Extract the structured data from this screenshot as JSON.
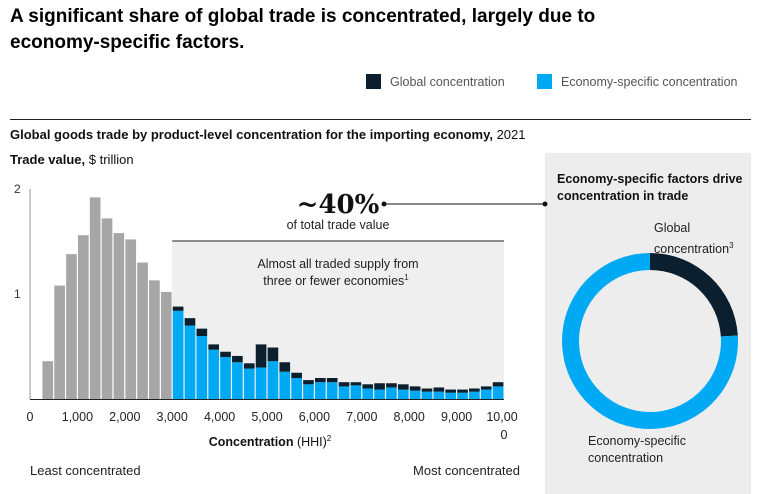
{
  "headline": "A significant share of global trade is concentrated, largely due to economy-specific factors.",
  "legend": {
    "global_label": "Global concentration",
    "economy_label": "Economy-specific concentration"
  },
  "colors": {
    "global": "#0b1f2e",
    "economy": "#00a9f4",
    "grey": "#a6a6a6",
    "shade": "#efefef"
  },
  "subtitle": {
    "bold": "Global goods trade by product-level concentration for the importing economy,",
    "year": " 2021"
  },
  "ylabel": {
    "bold": "Trade value,",
    "unit": " $ trillion"
  },
  "annotation": {
    "pct": "~40%",
    "pct_sub": "of total trade value",
    "note_line1": "Almost all traded supply from",
    "note_line2": "three or fewer economies",
    "note_sup": "1"
  },
  "xaxis": {
    "title": "Concentration",
    "unit": " (HHI)",
    "sup": "2",
    "least": "Least concentrated",
    "most": "Most concentrated"
  },
  "side": {
    "title": "Economy-specific factors drive concentration in trade",
    "global_label": "Global",
    "global_label2": "concentration",
    "global_sup": "3",
    "economy_label": "Economy-specific",
    "economy_label2": "concentration"
  },
  "chart_data": [
    {
      "type": "bar",
      "title": "Global goods trade by product-level concentration for the importing economy, 2021",
      "xlabel": "Concentration (HHI)",
      "ylabel": "Trade value, $ trillion",
      "ylim": [
        0,
        2
      ],
      "xlim": [
        0,
        10000
      ],
      "bin_width": 250,
      "yticks": [
        "2",
        "1"
      ],
      "xticks": [
        "0",
        "1,000",
        "2,000",
        "3,000",
        "4,000",
        "5,000",
        "6,000",
        "7,000",
        "8,000",
        "9,000",
        "10,000"
      ],
      "stacked": true,
      "legend_position": "top-right",
      "series": [
        {
          "name": "Global concentration",
          "values": [
            0,
            0,
            0,
            0,
            0,
            0,
            0,
            0,
            0,
            0,
            0,
            0,
            0.04,
            0.07,
            0.07,
            0.05,
            0.05,
            0.06,
            0.05,
            0.22,
            0.13,
            0.09,
            0.05,
            0.04,
            0.04,
            0.04,
            0.04,
            0.03,
            0.04,
            0.06,
            0.04,
            0.05,
            0.04,
            0.03,
            0.04,
            0.03,
            0.03,
            0.03,
            0.03,
            0.04
          ]
        },
        {
          "name": "Economy-specific concentration",
          "values": [
            0,
            0.36,
            1.08,
            1.38,
            1.56,
            1.92,
            1.72,
            1.58,
            1.52,
            1.3,
            1.13,
            1.02,
            0.84,
            0.7,
            0.6,
            0.47,
            0.4,
            0.35,
            0.29,
            0.3,
            0.36,
            0.26,
            0.2,
            0.14,
            0.16,
            0.16,
            0.12,
            0.13,
            0.1,
            0.09,
            0.11,
            0.09,
            0.08,
            0.07,
            0.07,
            0.06,
            0.06,
            0.07,
            0.09,
            0.12
          ]
        }
      ],
      "highlight_start_x": 3000,
      "highlight_note": "~40% of total trade value"
    },
    {
      "type": "pie",
      "title": "Economy-specific factors drive concentration in trade",
      "series": [
        {
          "name": "Global concentration",
          "value": 24
        },
        {
          "name": "Economy-specific concentration",
          "value": 76
        }
      ]
    }
  ]
}
